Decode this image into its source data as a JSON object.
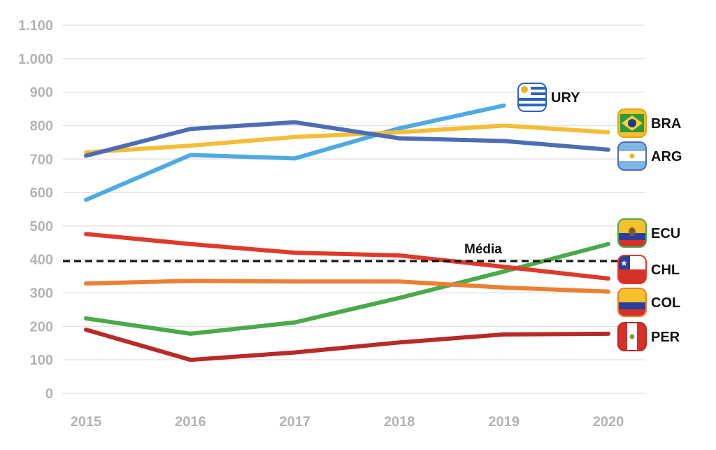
{
  "chart_data": {
    "type": "line",
    "title": "",
    "xlabel": "",
    "ylabel": "",
    "categories": [
      "2015",
      "2016",
      "2017",
      "2018",
      "2019",
      "2020"
    ],
    "y_ticks": [
      0,
      100,
      200,
      300,
      400,
      500,
      600,
      700,
      800,
      900,
      1000,
      1100
    ],
    "y_tick_labels": [
      "0",
      "100",
      "200",
      "300",
      "400",
      "500",
      "600",
      "700",
      "800",
      "900",
      "1.000",
      "1.100"
    ],
    "ylim": [
      0,
      1100
    ],
    "grid": "horizontal",
    "series": [
      {
        "name": "URY",
        "color": "#4fa9e2",
        "values": [
          578,
          712,
          702,
          792,
          860,
          null
        ],
        "flag": "uruguay-flag-icon"
      },
      {
        "name": "BRA",
        "color": "#f4bd38",
        "values": [
          720,
          740,
          766,
          780,
          800,
          780
        ],
        "flag": "brazil-flag-icon"
      },
      {
        "name": "ARG",
        "color": "#4c6db4",
        "values": [
          710,
          790,
          810,
          762,
          754,
          728
        ],
        "flag": "argentina-flag-icon"
      },
      {
        "name": "ECU",
        "color": "#4aa94b",
        "values": [
          224,
          178,
          212,
          285,
          364,
          446
        ],
        "flag": "ecuador-flag-icon"
      },
      {
        "name": "CHL",
        "color": "#dd3a2a",
        "values": [
          476,
          446,
          420,
          412,
          378,
          343
        ],
        "flag": "chile-flag-icon"
      },
      {
        "name": "COL",
        "color": "#ec7f33",
        "values": [
          328,
          336,
          334,
          334,
          316,
          304
        ],
        "flag": "colombia-flag-icon"
      },
      {
        "name": "PER",
        "color": "#b82a26",
        "values": [
          190,
          100,
          122,
          152,
          176,
          178
        ],
        "flag": "peru-flag-icon"
      }
    ],
    "reference_line": {
      "label": "Média",
      "value": 395
    }
  }
}
